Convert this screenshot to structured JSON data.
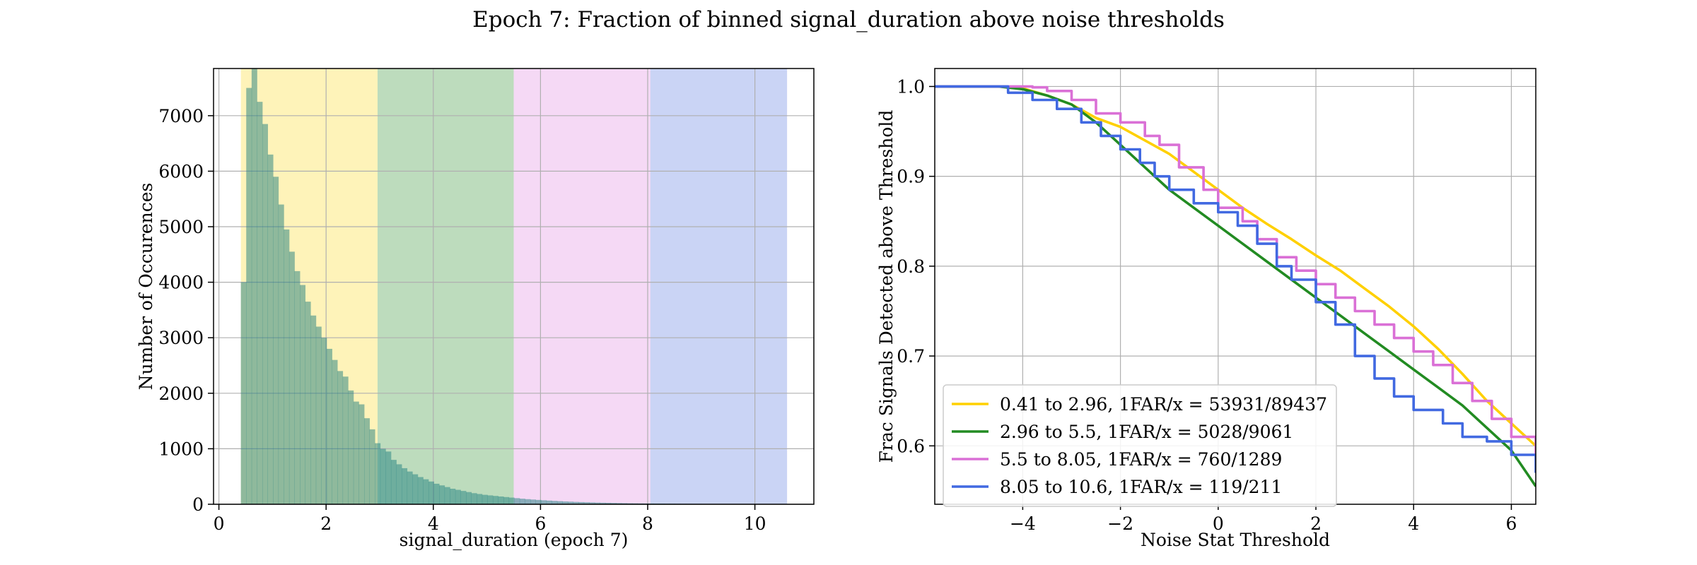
{
  "figure": {
    "title": "Epoch 7: Fraction of binned signal_duration above noise thresholds"
  },
  "chart_data": [
    {
      "type": "bar",
      "subtype": "histogram",
      "xlabel": "signal_duration (epoch 7)",
      "ylabel": "Number of Occurences",
      "xlim": [
        -0.1,
        11.1
      ],
      "ylim": [
        0,
        7850
      ],
      "xticks": [
        0,
        2,
        4,
        6,
        8,
        10
      ],
      "yticks": [
        0,
        1000,
        2000,
        3000,
        4000,
        5000,
        6000,
        7000
      ],
      "grid": true,
      "bin_width": 0.1,
      "bin_start": 0.41,
      "values": [
        4000,
        7500,
        7850,
        7250,
        6850,
        6300,
        5900,
        5400,
        4950,
        4550,
        4200,
        3950,
        3650,
        3400,
        3200,
        3000,
        2800,
        2600,
        2400,
        2300,
        2050,
        1850,
        1800,
        1550,
        1350,
        1100,
        1000,
        950,
        800,
        720,
        650,
        590,
        540,
        490,
        450,
        410,
        370,
        340,
        310,
        280,
        260,
        240,
        220,
        200,
        185,
        170,
        160,
        150,
        140,
        130,
        120,
        110,
        100,
        92,
        85,
        78,
        72,
        66,
        60,
        55,
        50,
        46,
        42,
        39,
        36,
        33,
        30,
        28,
        26,
        24,
        22,
        20,
        18,
        17,
        16,
        15,
        14,
        13,
        12,
        11,
        10,
        9,
        8,
        8,
        7,
        7,
        6,
        6,
        5,
        5,
        4,
        4,
        4,
        3,
        3,
        3,
        2,
        2,
        2,
        2,
        1,
        1
      ],
      "ranges": [
        {
          "from": 0.41,
          "to": 2.96,
          "color": "#fde050"
        },
        {
          "from": 2.96,
          "to": 5.5,
          "color": "#5aa85a"
        },
        {
          "from": 5.5,
          "to": 8.05,
          "color": "#e6a0e6"
        },
        {
          "from": 8.05,
          "to": 10.6,
          "color": "#7a94e6"
        }
      ]
    },
    {
      "type": "line",
      "xlabel": "Noise Stat Threshold",
      "ylabel": "Frac Signals Detected above Threshold",
      "xlim": [
        -5.8,
        6.5
      ],
      "ylim": [
        0.535,
        1.02
      ],
      "xticks": [
        -4,
        -2,
        0,
        2,
        4,
        6
      ],
      "xtick_labels": [
        "−4",
        "−2",
        "0",
        "2",
        "4",
        "6"
      ],
      "yticks": [
        0.6,
        0.7,
        0.8,
        0.9,
        1.0
      ],
      "ytick_labels": [
        "0.6",
        "0.7",
        "0.8",
        "0.9",
        "1.0"
      ],
      "grid": true,
      "legend": "lower-left",
      "series": [
        {
          "name": "0.41 to 2.96, 1FAR/x = 53931/89437",
          "color": "#ffd000",
          "step": false,
          "points": [
            [
              -5.8,
              1.0
            ],
            [
              -4.5,
              1.0
            ],
            [
              -4,
              0.998
            ],
            [
              -3.5,
              0.99
            ],
            [
              -3,
              0.98
            ],
            [
              -2.5,
              0.965
            ],
            [
              -2,
              0.955
            ],
            [
              -1.5,
              0.94
            ],
            [
              -1,
              0.925
            ],
            [
              -0.5,
              0.905
            ],
            [
              0,
              0.885
            ],
            [
              0.5,
              0.865
            ],
            [
              1,
              0.847
            ],
            [
              1.5,
              0.83
            ],
            [
              2,
              0.812
            ],
            [
              2.5,
              0.795
            ],
            [
              3,
              0.775
            ],
            [
              3.5,
              0.755
            ],
            [
              4,
              0.733
            ],
            [
              4.5,
              0.708
            ],
            [
              5,
              0.68
            ],
            [
              5.5,
              0.65
            ],
            [
              6,
              0.625
            ],
            [
              6.5,
              0.6
            ]
          ]
        },
        {
          "name": "2.96 to 5.5, 1FAR/x = 5028/9061",
          "color": "#228b22",
          "step": false,
          "points": [
            [
              -5.8,
              1.0
            ],
            [
              -4.5,
              1.0
            ],
            [
              -4,
              0.997
            ],
            [
              -3.5,
              0.99
            ],
            [
              -3,
              0.98
            ],
            [
              -2.5,
              0.96
            ],
            [
              -2,
              0.935
            ],
            [
              -1.5,
              0.91
            ],
            [
              -1,
              0.885
            ],
            [
              -0.5,
              0.865
            ],
            [
              0,
              0.845
            ],
            [
              0.5,
              0.825
            ],
            [
              1,
              0.805
            ],
            [
              1.5,
              0.785
            ],
            [
              2,
              0.765
            ],
            [
              2.5,
              0.745
            ],
            [
              3,
              0.725
            ],
            [
              3.5,
              0.705
            ],
            [
              4,
              0.685
            ],
            [
              4.5,
              0.665
            ],
            [
              5,
              0.645
            ],
            [
              5.5,
              0.62
            ],
            [
              6,
              0.595
            ],
            [
              6.5,
              0.555
            ]
          ]
        },
        {
          "name": "5.5 to 8.05, 1FAR/x = 760/1289",
          "color": "#da70d6",
          "step": true,
          "points": [
            [
              -5.8,
              1.0
            ],
            [
              -4.2,
              1.0
            ],
            [
              -3.8,
              0.999
            ],
            [
              -3.5,
              0.995
            ],
            [
              -3,
              0.985
            ],
            [
              -2.5,
              0.97
            ],
            [
              -2,
              0.96
            ],
            [
              -1.5,
              0.945
            ],
            [
              -1.2,
              0.935
            ],
            [
              -0.8,
              0.91
            ],
            [
              -0.3,
              0.885
            ],
            [
              0,
              0.865
            ],
            [
              0.5,
              0.85
            ],
            [
              0.8,
              0.83
            ],
            [
              1.2,
              0.81
            ],
            [
              1.6,
              0.795
            ],
            [
              2,
              0.78
            ],
            [
              2.4,
              0.765
            ],
            [
              2.8,
              0.75
            ],
            [
              3.2,
              0.735
            ],
            [
              3.6,
              0.72
            ],
            [
              4,
              0.705
            ],
            [
              4.4,
              0.69
            ],
            [
              4.8,
              0.67
            ],
            [
              5.2,
              0.65
            ],
            [
              5.6,
              0.63
            ],
            [
              6,
              0.61
            ],
            [
              6.5,
              0.59
            ]
          ]
        },
        {
          "name": "8.05 to 10.6, 1FAR/x = 119/211",
          "color": "#4169e1",
          "step": true,
          "points": [
            [
              -5.8,
              1.0
            ],
            [
              -4.8,
              1.0
            ],
            [
              -4.3,
              0.993
            ],
            [
              -3.8,
              0.985
            ],
            [
              -3.3,
              0.975
            ],
            [
              -2.8,
              0.96
            ],
            [
              -2.4,
              0.945
            ],
            [
              -2,
              0.93
            ],
            [
              -1.6,
              0.915
            ],
            [
              -1.3,
              0.9
            ],
            [
              -1,
              0.885
            ],
            [
              -0.5,
              0.87
            ],
            [
              0,
              0.86
            ],
            [
              0.4,
              0.845
            ],
            [
              0.8,
              0.825
            ],
            [
              1.2,
              0.8
            ],
            [
              1.5,
              0.785
            ],
            [
              2,
              0.76
            ],
            [
              2.4,
              0.735
            ],
            [
              2.8,
              0.7
            ],
            [
              3.2,
              0.675
            ],
            [
              3.6,
              0.655
            ],
            [
              4,
              0.64
            ],
            [
              4.6,
              0.625
            ],
            [
              5,
              0.61
            ],
            [
              5.5,
              0.605
            ],
            [
              6,
              0.59
            ],
            [
              6.5,
              0.57
            ]
          ]
        }
      ]
    }
  ]
}
